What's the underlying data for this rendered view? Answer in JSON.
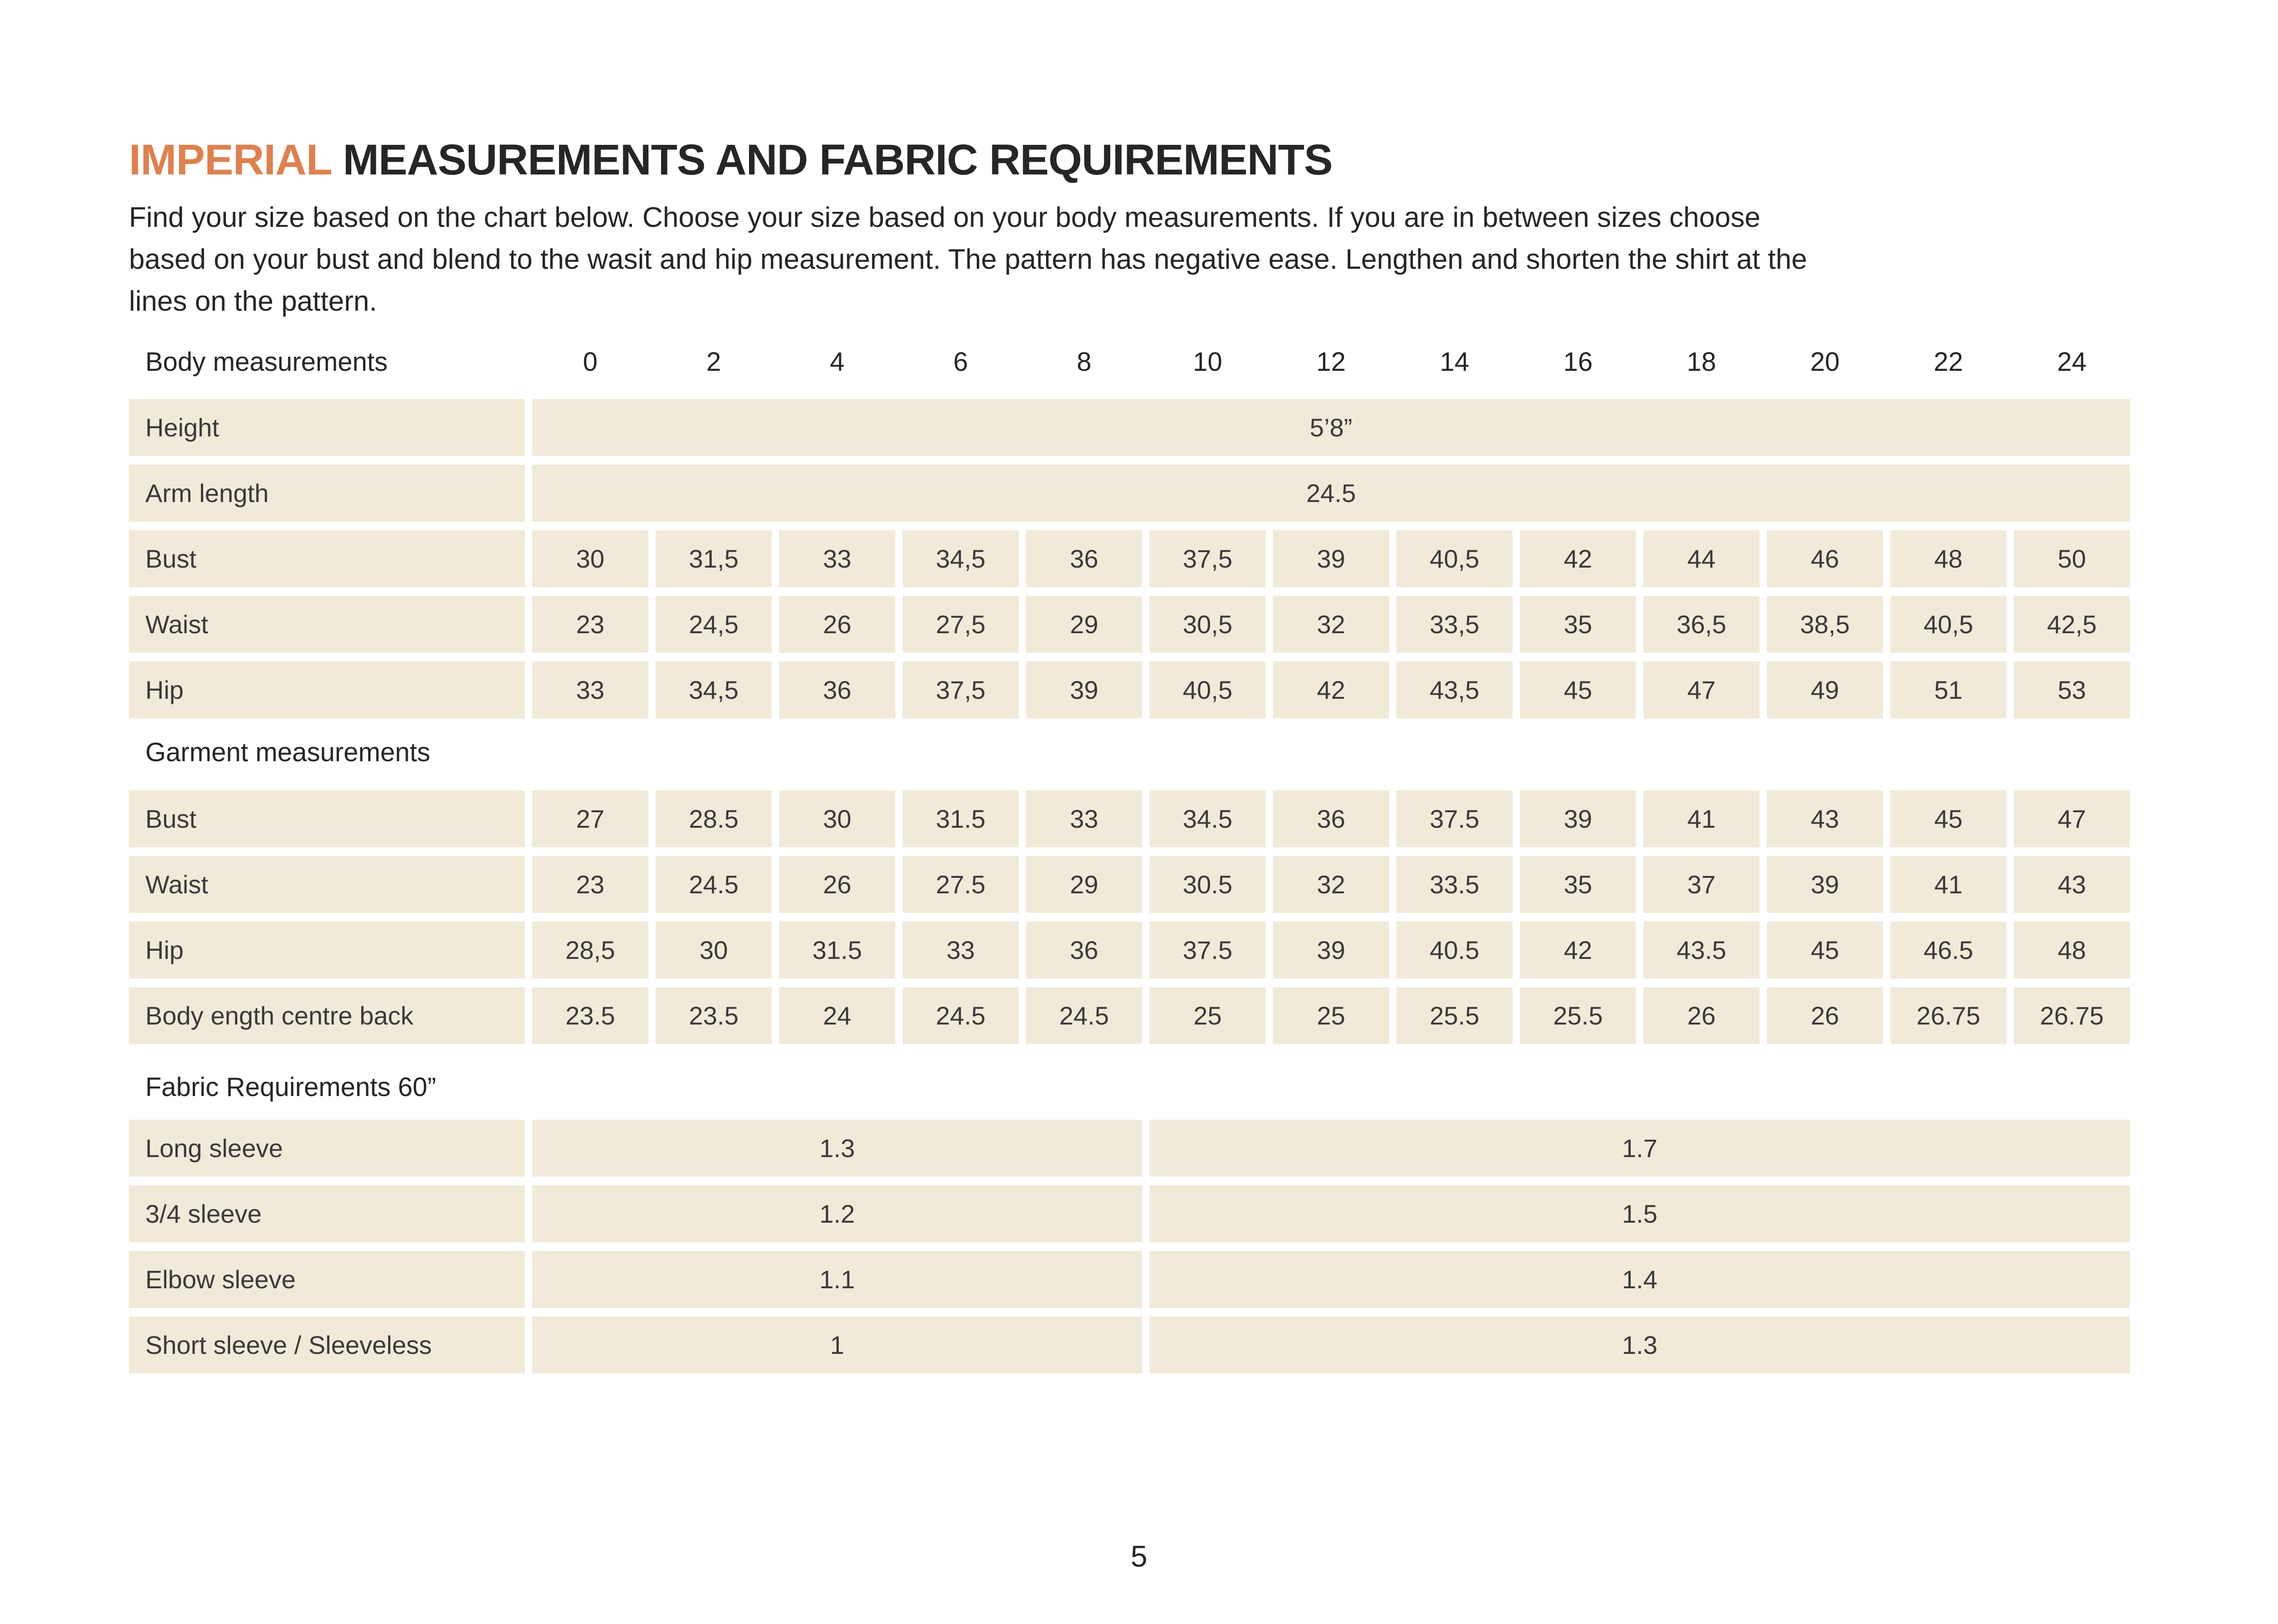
{
  "page": {
    "title_highlight": "IMPERIAL",
    "title_rest": " MEASUREMENTS AND FABRIC REQUIREMENTS",
    "intro_lines": [
      "Find your size based on the chart below. Choose your size based on your body measurements. If you are in between sizes choose",
      "based on your bust and blend to the wasit and hip measurement. The pattern has negative ease. Lengthen and shorten the shirt at the",
      "lines on the pattern."
    ],
    "page_number": "5"
  },
  "colors": {
    "accent_orange": "#dd8150",
    "row_beige": "#f1ead9",
    "text_dark": "#2d2d2d"
  },
  "size_chart": {
    "header_label": "Body measurements",
    "sizes": [
      "0",
      "2",
      "4",
      "6",
      "8",
      "10",
      "12",
      "14",
      "16",
      "18",
      "20",
      "22",
      "24"
    ],
    "body_rows": [
      {
        "label": "Height",
        "merged_value": "5’8”"
      },
      {
        "label": "Arm length",
        "merged_value": "24.5"
      },
      {
        "label": "Bust",
        "values": [
          "30",
          "31,5",
          "33",
          "34,5",
          "36",
          "37,5",
          "39",
          "40,5",
          "42",
          "44",
          "46",
          "48",
          "50"
        ]
      },
      {
        "label": "Waist",
        "values": [
          "23",
          "24,5",
          "26",
          "27,5",
          "29",
          "30,5",
          "32",
          "33,5",
          "35",
          "36,5",
          "38,5",
          "40,5",
          "42,5"
        ]
      },
      {
        "label": "Hip",
        "values": [
          "33",
          "34,5",
          "36",
          "37,5",
          "39",
          "40,5",
          "42",
          "43,5",
          "45",
          "47",
          "49",
          "51",
          "53"
        ]
      }
    ],
    "garment_heading": "Garment measurements",
    "garment_rows": [
      {
        "label": "Bust",
        "values": [
          "27",
          "28.5",
          "30",
          "31.5",
          "33",
          "34.5",
          "36",
          "37.5",
          "39",
          "41",
          "43",
          "45",
          "47"
        ]
      },
      {
        "label": "Waist",
        "values": [
          "23",
          "24.5",
          "26",
          "27.5",
          "29",
          "30.5",
          "32",
          "33.5",
          "35",
          "37",
          "39",
          "41",
          "43"
        ]
      },
      {
        "label": "Hip",
        "values": [
          "28,5",
          "30",
          "31.5",
          "33",
          "36",
          "37.5",
          "39",
          "40.5",
          "42",
          "43.5",
          "45",
          "46.5",
          "48"
        ]
      },
      {
        "label": "Body ength centre back",
        "values": [
          "23.5",
          "23.5",
          "24",
          "24.5",
          "24.5",
          "25",
          "25",
          "25.5",
          "25.5",
          "26",
          "26",
          "26.75",
          "26.75"
        ]
      }
    ],
    "fabric_heading": "Fabric Requirements 60”",
    "fabric_rows": [
      {
        "label": "Long sleeve",
        "left_value": "1.3",
        "right_value": "1.7"
      },
      {
        "label": "3/4 sleeve",
        "left_value": "1.2",
        "right_value": "1.5"
      },
      {
        "label": "Elbow sleeve",
        "left_value": "1.1",
        "right_value": "1.4"
      },
      {
        "label": "Short sleeve / Sleeveless",
        "left_value": "1",
        "right_value": "1.3"
      }
    ]
  }
}
